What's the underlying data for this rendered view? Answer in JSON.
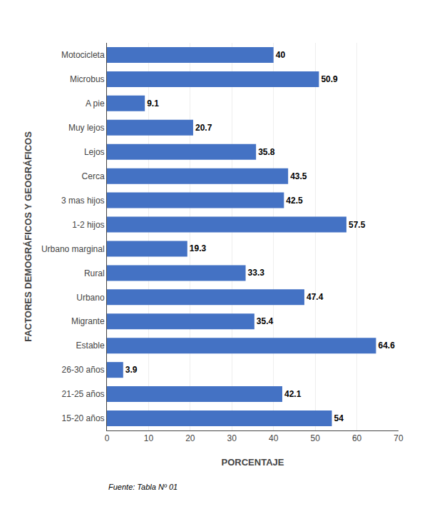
{
  "chart_data": {
    "type": "bar",
    "orientation": "horizontal",
    "categories": [
      "15-20 años",
      "21-25 años",
      "26-30 años",
      "Estable",
      "Migrante",
      "Urbano",
      "Rural",
      "Urbano marginal",
      "1-2 hijos",
      "3 mas hijos",
      "Cerca",
      "Lejos",
      "Muy lejos",
      "A pie",
      "Microbus",
      "Motocicleta"
    ],
    "values": [
      54,
      42.1,
      3.9,
      64.6,
      35.4,
      47.4,
      33.3,
      19.3,
      57.5,
      42.5,
      43.5,
      35.8,
      20.7,
      9.1,
      50.9,
      40
    ],
    "color": "#4472C4",
    "xlabel": "PORCENTAJE",
    "ylabel": "FACTORES DEMOGRÁFICOS Y GEOGRÁFICOS",
    "xlim": [
      0,
      70
    ],
    "xticks": [
      0,
      10,
      20,
      30,
      40,
      50,
      60,
      70
    ],
    "grid": true,
    "data_labels": true,
    "annotations": [
      "Fuente: Tabla Nº 01"
    ]
  }
}
